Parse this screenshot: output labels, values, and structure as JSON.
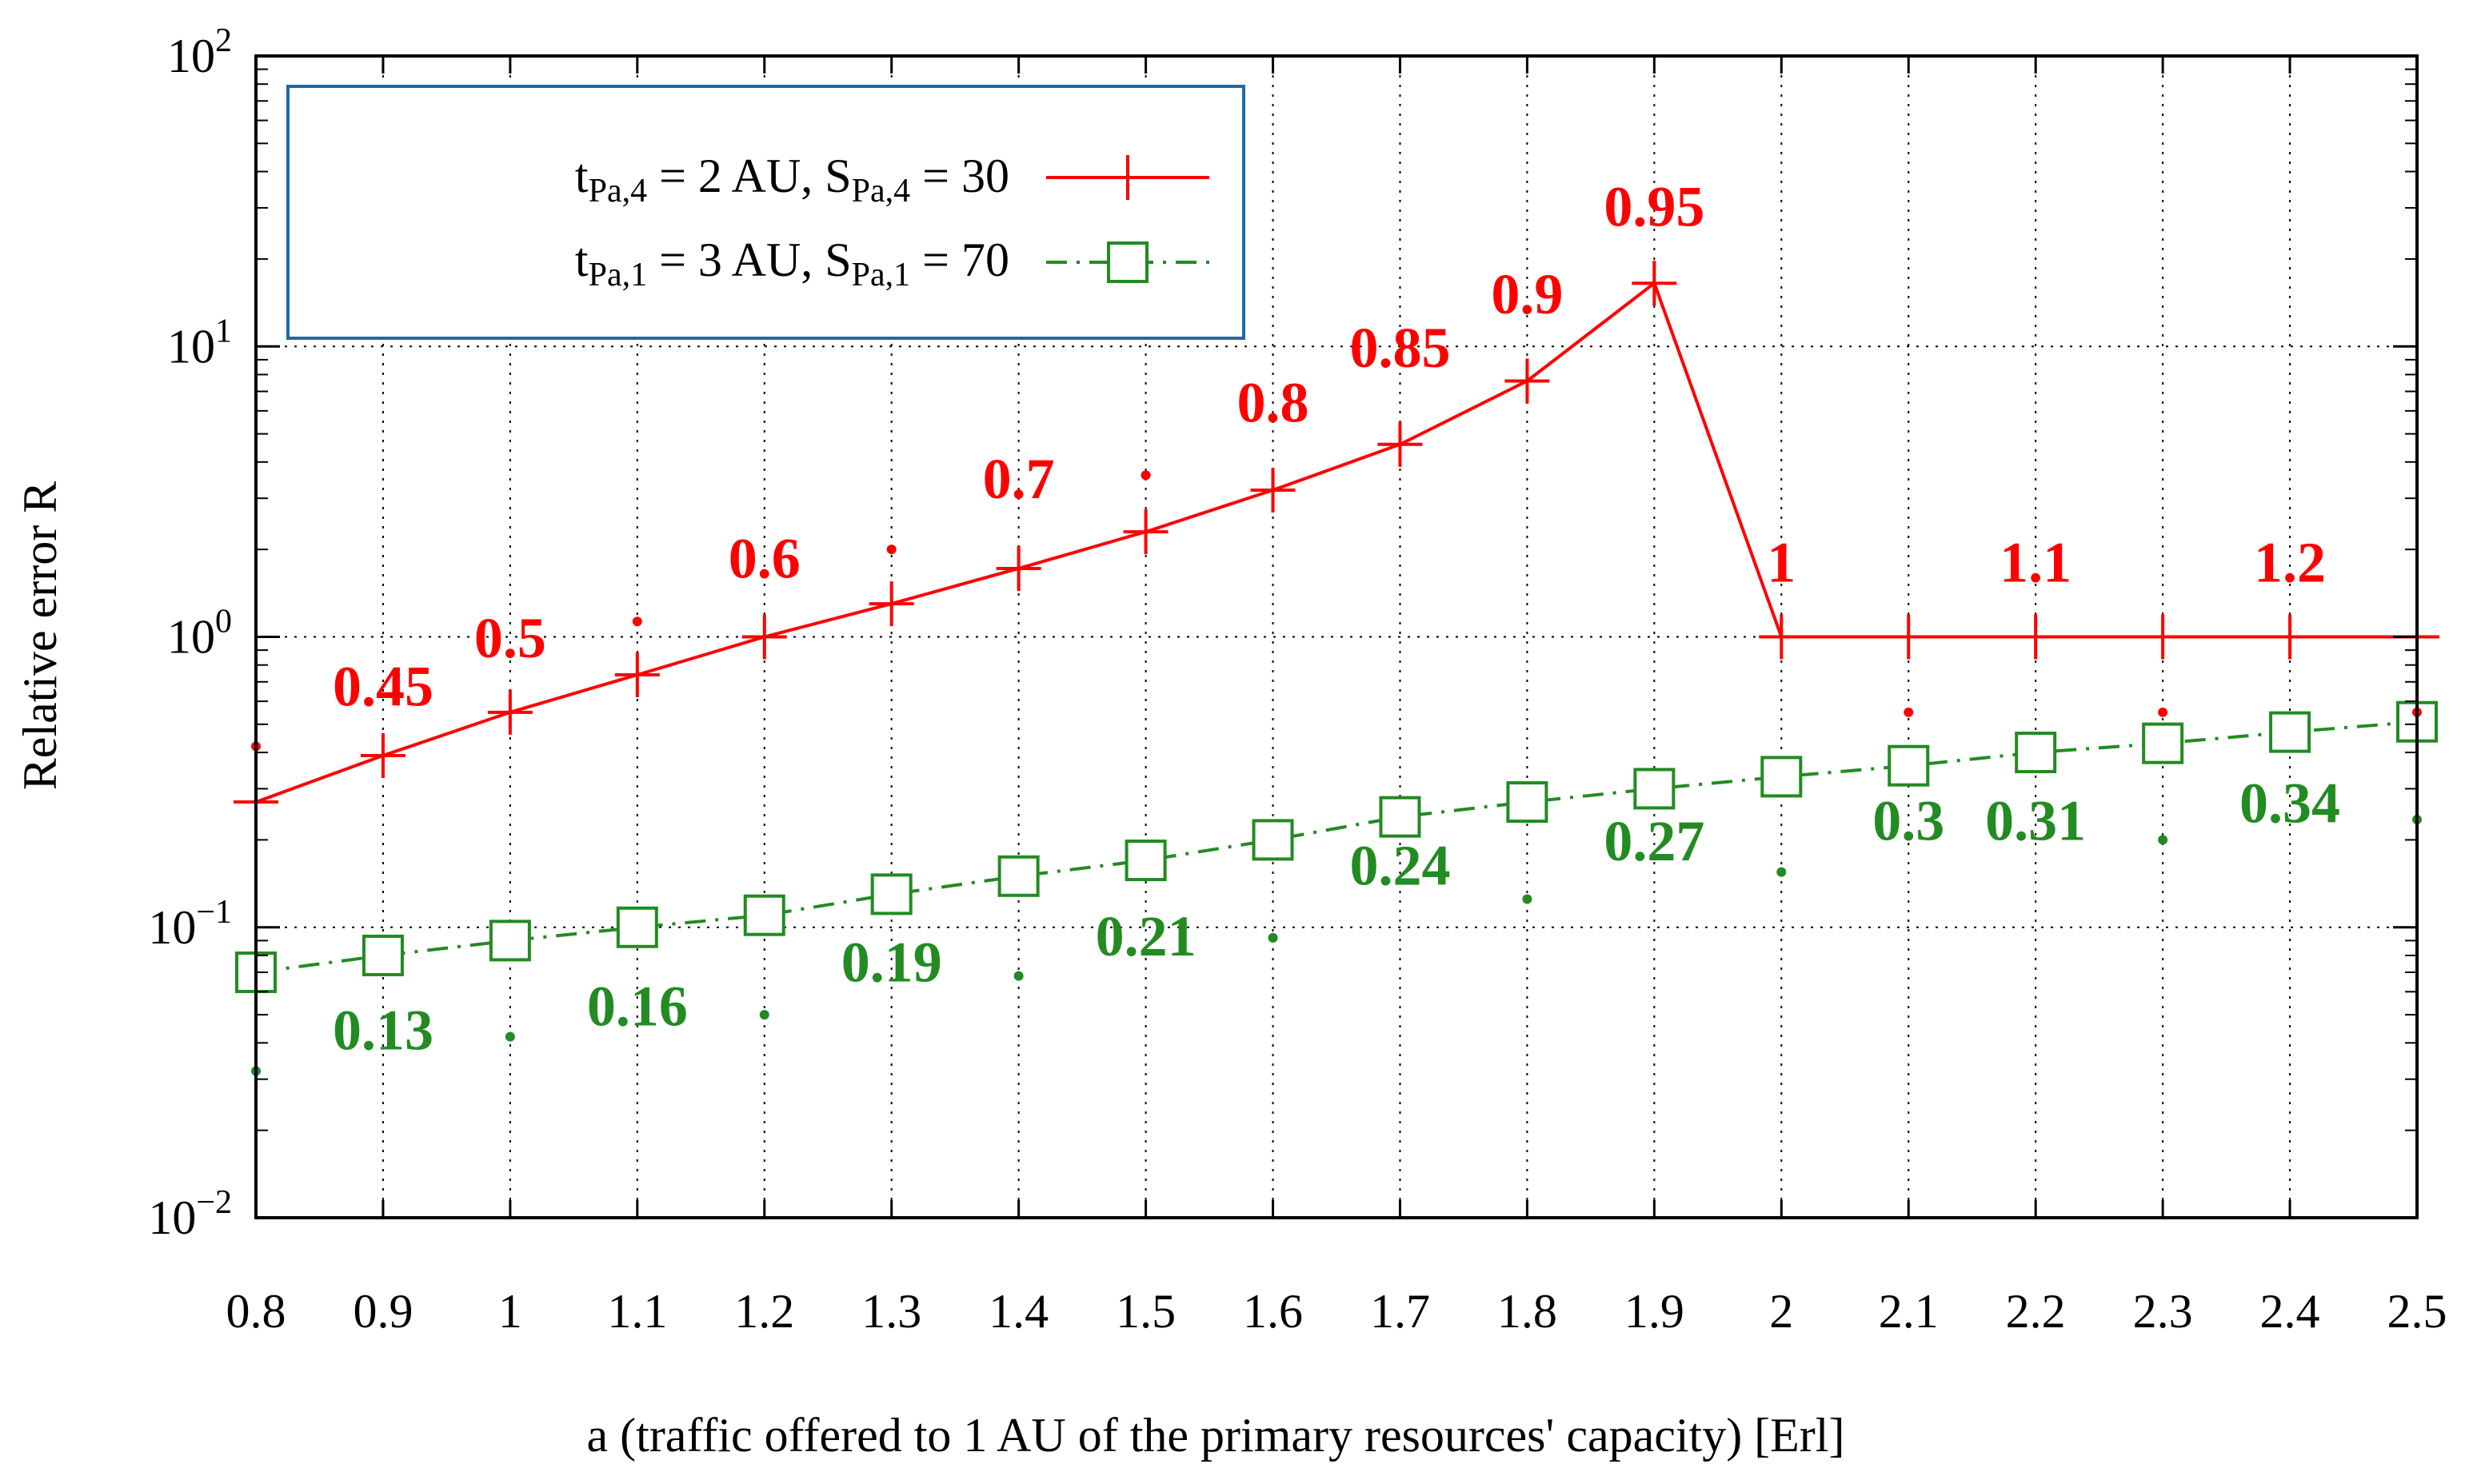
{
  "chart_data": {
    "type": "line",
    "title": "",
    "xlabel": "a (traffic offered to 1 AU of the primary resources' capacity) [Erl]",
    "ylabel": "Relative error R",
    "xlim": [
      0.8,
      2.5
    ],
    "ylim": [
      0.01,
      100
    ],
    "yscale": "log",
    "grid": true,
    "legend_position": "top-left",
    "x_ticks": [
      "0.8",
      "0.9",
      "1",
      "1.1",
      "1.2",
      "1.3",
      "1.4",
      "1.5",
      "1.6",
      "1.7",
      "1.8",
      "1.9",
      "2",
      "2.1",
      "2.2",
      "2.3",
      "2.4",
      "2.5"
    ],
    "y_ticks": [
      {
        "base": "10",
        "exp": "−2",
        "value": 0.01
      },
      {
        "base": "10",
        "exp": "−1",
        "value": 0.1
      },
      {
        "base": "10",
        "exp": "0",
        "value": 1
      },
      {
        "base": "10",
        "exp": "1",
        "value": 10
      },
      {
        "base": "10",
        "exp": "2",
        "value": 100
      }
    ],
    "x": [
      0.8,
      0.9,
      1.0,
      1.1,
      1.2,
      1.3,
      1.4,
      1.5,
      1.6,
      1.7,
      1.8,
      1.9,
      2.0,
      2.1,
      2.2,
      2.3,
      2.4,
      2.5
    ],
    "series": [
      {
        "name": "tPa,4 = 2 AU, SPa,4 = 30",
        "legend": {
          "t_sub": "Pa,4",
          "t_rest": " = 2 AU, S",
          "s_sub": "Pa,4",
          "s_rest": " = 30"
        },
        "color": "#ff0000",
        "marker": "plus",
        "line": "solid",
        "values": [
          0.27,
          0.39,
          0.55,
          0.74,
          1.0,
          1.3,
          1.72,
          2.3,
          3.2,
          4.6,
          7.6,
          16.5,
          1.0,
          1.0,
          1.0,
          1.0,
          1.0,
          1.0
        ]
      },
      {
        "name": "tPa,1 = 3 AU, SPa,1 = 70",
        "legend": {
          "t_sub": "Pa,1",
          "t_rest": " = 3 AU, S",
          "s_sub": "Pa,1",
          "s_rest": " = 70"
        },
        "color": "#228b22",
        "marker": "square",
        "line": "dash-dot",
        "values": [
          0.07,
          0.08,
          0.09,
          0.1,
          0.11,
          0.13,
          0.15,
          0.17,
          0.2,
          0.24,
          0.27,
          0.3,
          0.33,
          0.36,
          0.4,
          0.43,
          0.47,
          0.51
        ]
      }
    ],
    "annotations": [
      {
        "series": 0,
        "text": "0.45",
        "x": 0.9,
        "y": 0.58
      },
      {
        "series": 0,
        "text": "0.5",
        "x": 1.0,
        "y": 0.85
      },
      {
        "series": 0,
        "text": "0.6",
        "x": 1.2,
        "y": 1.6
      },
      {
        "series": 0,
        "text": "0.7",
        "x": 1.4,
        "y": 3.0
      },
      {
        "series": 0,
        "text": "0.8",
        "x": 1.6,
        "y": 5.5
      },
      {
        "series": 0,
        "text": "0.85",
        "x": 1.7,
        "y": 8.5
      },
      {
        "series": 0,
        "text": "0.9",
        "x": 1.8,
        "y": 13.0
      },
      {
        "series": 0,
        "text": "0.95",
        "x": 1.9,
        "y": 26.0
      },
      {
        "series": 0,
        "text": "1",
        "x": 2.0,
        "y": 1.55
      },
      {
        "series": 0,
        "text": "1.1",
        "x": 2.2,
        "y": 1.55
      },
      {
        "series": 0,
        "text": "1.2",
        "x": 2.4,
        "y": 1.55
      },
      {
        "series": 1,
        "text": "0.13",
        "x": 0.9,
        "y": 0.038
      },
      {
        "series": 1,
        "text": "0.16",
        "x": 1.1,
        "y": 0.046
      },
      {
        "series": 1,
        "text": "0.19",
        "x": 1.3,
        "y": 0.065
      },
      {
        "series": 1,
        "text": "0.21",
        "x": 1.5,
        "y": 0.08
      },
      {
        "series": 1,
        "text": "0.24",
        "x": 1.7,
        "y": 0.14
      },
      {
        "series": 1,
        "text": "0.27",
        "x": 1.9,
        "y": 0.17
      },
      {
        "series": 1,
        "text": "0.3",
        "x": 2.1,
        "y": 0.2
      },
      {
        "series": 1,
        "text": "0.31",
        "x": 2.2,
        "y": 0.2
      },
      {
        "series": 1,
        "text": "0.34",
        "x": 2.4,
        "y": 0.23
      }
    ],
    "dots": [
      {
        "series": 0,
        "x": 0.8,
        "y": 0.42
      },
      {
        "series": 0,
        "x": 1.1,
        "y": 1.13
      },
      {
        "series": 0,
        "x": 1.3,
        "y": 2.0
      },
      {
        "series": 0,
        "x": 1.5,
        "y": 3.6
      },
      {
        "series": 0,
        "x": 2.1,
        "y": 0.55
      },
      {
        "series": 0,
        "x": 2.3,
        "y": 0.55
      },
      {
        "series": 0,
        "x": 2.5,
        "y": 0.55
      },
      {
        "series": 1,
        "x": 0.8,
        "y": 0.032
      },
      {
        "series": 1,
        "x": 1.0,
        "y": 0.042
      },
      {
        "series": 1,
        "x": 1.2,
        "y": 0.05
      },
      {
        "series": 1,
        "x": 1.4,
        "y": 0.068
      },
      {
        "series": 1,
        "x": 1.6,
        "y": 0.092
      },
      {
        "series": 1,
        "x": 1.8,
        "y": 0.125
      },
      {
        "series": 1,
        "x": 2.0,
        "y": 0.155
      },
      {
        "series": 1,
        "x": 2.3,
        "y": 0.2
      },
      {
        "series": 1,
        "x": 2.5,
        "y": 0.235
      }
    ]
  }
}
